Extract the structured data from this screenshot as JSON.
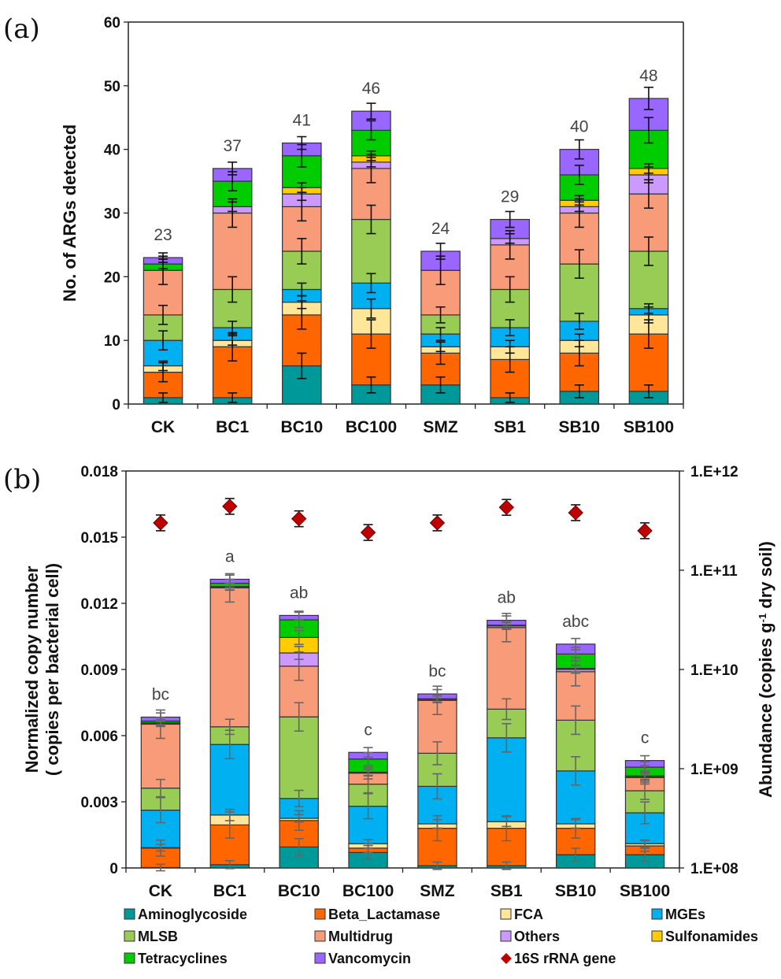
{
  "chart_data": [
    {
      "panel": "(a)",
      "type": "bar",
      "stacked": true,
      "title": "",
      "xlabel": "",
      "ylabel": "No. of ARGs detected",
      "ylim": [
        0,
        60
      ],
      "yticks": [
        "0",
        "10",
        "20",
        "30",
        "40",
        "50",
        "60"
      ],
      "categories": [
        "CK",
        "BC1",
        "BC10",
        "BC100",
        "SMZ",
        "SB1",
        "SB10",
        "SB100"
      ],
      "totals_labels": [
        "23",
        "37",
        "41",
        "46",
        "24",
        "29",
        "40",
        "48"
      ],
      "series": [
        {
          "name": "Aminoglycoside",
          "values": [
            1,
            1,
            6,
            3,
            3,
            1,
            2,
            2
          ]
        },
        {
          "name": "Beta_Lactamase",
          "values": [
            4,
            8,
            8,
            8,
            5,
            6,
            6,
            9
          ]
        },
        {
          "name": "FCA",
          "values": [
            1,
            1,
            2,
            4,
            1,
            2,
            2,
            3
          ]
        },
        {
          "name": "MGEs",
          "values": [
            4,
            2,
            2,
            4,
            2,
            3,
            3,
            1
          ]
        },
        {
          "name": "MLSB",
          "values": [
            4,
            6,
            6,
            10,
            3,
            6,
            9,
            9
          ]
        },
        {
          "name": "Multidrug",
          "values": [
            7,
            12,
            7,
            8,
            7,
            7,
            8,
            9
          ]
        },
        {
          "name": "Others",
          "values": [
            0,
            1,
            2,
            1,
            0,
            1,
            1,
            3
          ]
        },
        {
          "name": "Sulfonamides",
          "values": [
            0,
            0,
            1,
            1,
            0,
            0,
            1,
            1
          ]
        },
        {
          "name": "Tetracyclines",
          "values": [
            1,
            4,
            5,
            4,
            0,
            0,
            4,
            6
          ]
        },
        {
          "name": "Vancomycin",
          "values": [
            1,
            2,
            2,
            3,
            3,
            3,
            4,
            5
          ]
        }
      ],
      "grid": false,
      "error_bars": true
    },
    {
      "panel": "(b)",
      "type": "bar",
      "stacked": true,
      "title": "",
      "xlabel": "",
      "ylabel": "Normalized copy number ( copies per bacterial cell)",
      "ylim": [
        0,
        0.018
      ],
      "yticks": [
        "0",
        "0.003",
        "0.006",
        "0.009",
        "0.012",
        "0.015",
        "0.018"
      ],
      "y2label": "Abundance (copies g-1 dry soil)",
      "y2label_parts": {
        "pre": "Abundance (copies g",
        "sup": "-1",
        "post": " dry soil)"
      },
      "y2scale": "log",
      "y2lim": [
        100000000.0,
        1000000000000.0
      ],
      "y2ticks": [
        "1.E+08",
        "1.E+09",
        "1.E+10",
        "1.E+11",
        "1.E+12"
      ],
      "categories": [
        "CK",
        "BC1",
        "BC10",
        "BC100",
        "SMZ",
        "SB1",
        "SB10",
        "SB100"
      ],
      "significance_labels": [
        "bc",
        "a",
        "ab",
        "c",
        "bc",
        "ab",
        "abc",
        "c"
      ],
      "series": [
        {
          "name": "Aminoglycoside",
          "values": [
            2e-05,
            0.00015,
            0.00095,
            0.0007,
            0.0001,
            0.0001,
            0.0006,
            0.0006
          ]
        },
        {
          "name": "Beta_Lactamase",
          "values": [
            0.00088,
            0.0018,
            0.0012,
            0.0002,
            0.0017,
            0.0017,
            0.0012,
            0.0004
          ]
        },
        {
          "name": "FCA",
          "values": [
            2e-05,
            0.00045,
            0.0001,
            0.0002,
            0.0002,
            0.0003,
            0.0002,
            0.0001
          ]
        },
        {
          "name": "MGEs",
          "values": [
            0.0017,
            0.0032,
            0.0009,
            0.0017,
            0.0017,
            0.0038,
            0.0024,
            0.0014
          ]
        },
        {
          "name": "MLSB",
          "values": [
            0.001,
            0.0008,
            0.0037,
            0.001,
            0.0015,
            0.0013,
            0.0023,
            0.001
          ]
        },
        {
          "name": "Multidrug",
          "values": [
            0.0029,
            0.0063,
            0.0023,
            0.0005,
            0.0024,
            0.0037,
            0.0022,
            0.0006
          ]
        },
        {
          "name": "Others",
          "values": [
            5e-05,
            5e-05,
            0.0006,
            2e-05,
            5e-05,
            8e-05,
            0.0001,
            2e-05
          ]
        },
        {
          "name": "Sulfonamides",
          "values": [
            1e-05,
            1e-05,
            0.0007,
            2e-05,
            1e-05,
            1e-05,
            5e-05,
            5e-05
          ]
        },
        {
          "name": "Tetracyclines",
          "values": [
            8e-05,
            0.00015,
            0.0008,
            0.0006,
            1e-05,
            2e-05,
            0.00065,
            0.0004
          ]
        },
        {
          "name": "Vancomycin",
          "values": [
            0.00018,
            0.00018,
            0.0002,
            0.0003,
            0.00022,
            0.00022,
            0.00045,
            0.0003
          ]
        }
      ],
      "secondary_series": {
        "name": "16S rRNA gene",
        "axis": "right",
        "marker": "diamond",
        "values": [
          300000000000.0,
          440000000000.0,
          330000000000.0,
          240000000000.0,
          300000000000.0,
          430000000000.0,
          380000000000.0,
          250000000000.0
        ]
      },
      "grid": false,
      "error_bars": true
    }
  ],
  "colors": {
    "Aminoglycoside": "#009999",
    "Beta_Lactamase": "#ff6600",
    "FCA": "#ffe699",
    "MGEs": "#00b0f0",
    "MLSB": "#99cc55",
    "Multidrug": "#f79b79",
    "Others": "#cc99ff",
    "Sulfonamides": "#ffcc00",
    "Tetracyclines": "#00cc00",
    "Vancomycin": "#9966ff",
    "16S rRNA gene": "#c00000"
  },
  "legend": {
    "placement": "bottom",
    "items": [
      "Aminoglycoside",
      "Beta_Lactamase",
      "FCA",
      "MGEs",
      "MLSB",
      "Multidrug",
      "Others",
      "Sulfonamides",
      "Tetracyclines",
      "Vancomycin",
      "16S rRNA gene"
    ]
  },
  "labels": {
    "panel_a": "(a)",
    "panel_b": "(b)"
  }
}
